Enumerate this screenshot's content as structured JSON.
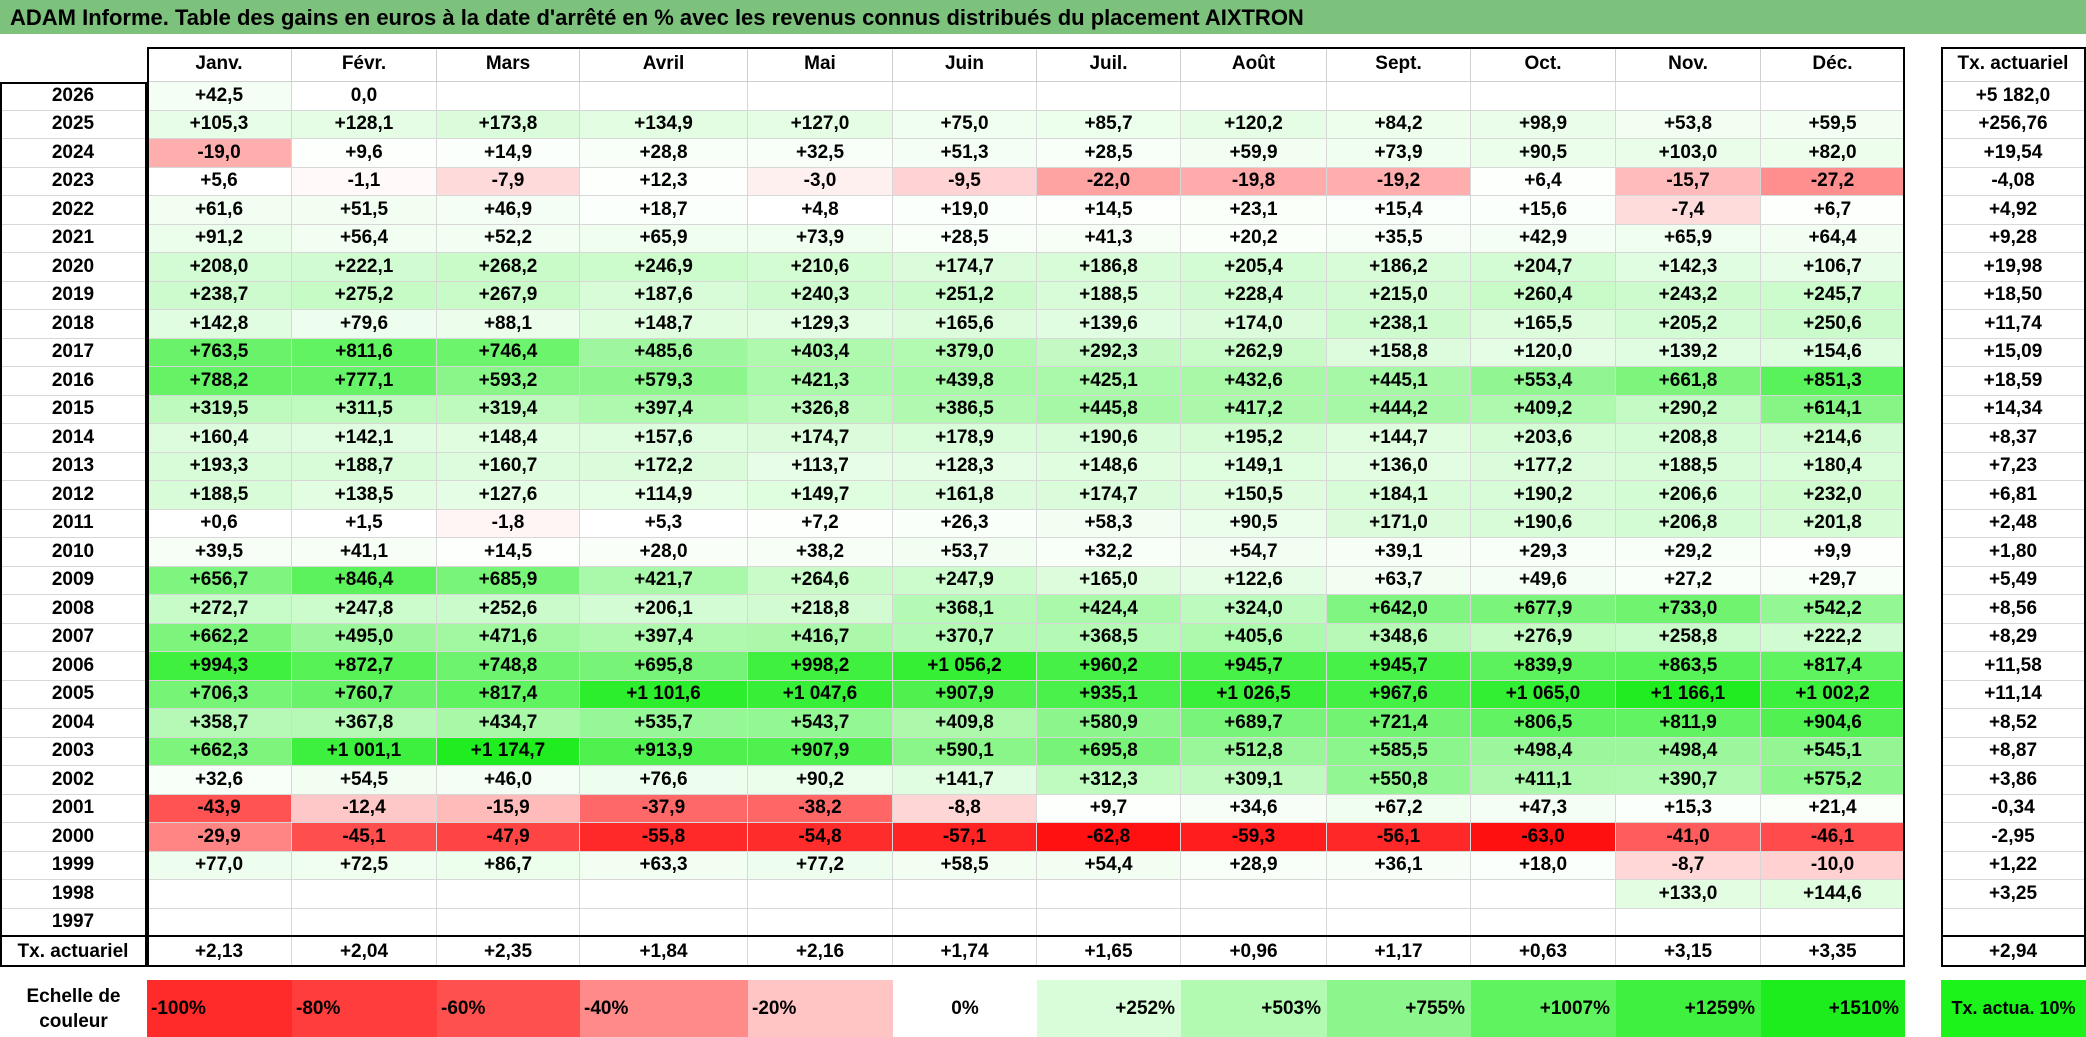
{
  "title": "ADAM Informe. Table des gains en euros à la date d'arrêté en % avec les revenus connus distribués du placement AIXTRON",
  "months": [
    "Janv.",
    "Févr.",
    "Mars",
    "Avril",
    "Mai",
    "Juin",
    "Juil.",
    "Août",
    "Sept.",
    "Oct.",
    "Nov.",
    "Déc."
  ],
  "tx_header": "Tx. actuariel",
  "rows": [
    {
      "year": "2026",
      "values": [
        "+42,5",
        "0,0",
        "",
        "",
        "",
        "",
        "",
        "",
        "",
        "",
        "",
        ""
      ],
      "tx": "+5 182,0"
    },
    {
      "year": "2025",
      "values": [
        "+105,3",
        "+128,1",
        "+173,8",
        "+134,9",
        "+127,0",
        "+75,0",
        "+85,7",
        "+120,2",
        "+84,2",
        "+98,9",
        "+53,8",
        "+59,5"
      ],
      "tx": "+256,76"
    },
    {
      "year": "2024",
      "values": [
        "-19,0",
        "+9,6",
        "+14,9",
        "+28,8",
        "+32,5",
        "+51,3",
        "+28,5",
        "+59,9",
        "+73,9",
        "+90,5",
        "+103,0",
        "+82,0"
      ],
      "tx": "+19,54"
    },
    {
      "year": "2023",
      "values": [
        "+5,6",
        "-1,1",
        "-7,9",
        "+12,3",
        "-3,0",
        "-9,5",
        "-22,0",
        "-19,8",
        "-19,2",
        "+6,4",
        "-15,7",
        "-27,2"
      ],
      "tx": "-4,08"
    },
    {
      "year": "2022",
      "values": [
        "+61,6",
        "+51,5",
        "+46,9",
        "+18,7",
        "+4,8",
        "+19,0",
        "+14,5",
        "+23,1",
        "+15,4",
        "+15,6",
        "-7,4",
        "+6,7"
      ],
      "tx": "+4,92"
    },
    {
      "year": "2021",
      "values": [
        "+91,2",
        "+56,4",
        "+52,2",
        "+65,9",
        "+73,9",
        "+28,5",
        "+41,3",
        "+20,2",
        "+35,5",
        "+42,9",
        "+65,9",
        "+64,4"
      ],
      "tx": "+9,28"
    },
    {
      "year": "2020",
      "values": [
        "+208,0",
        "+222,1",
        "+268,2",
        "+246,9",
        "+210,6",
        "+174,7",
        "+186,8",
        "+205,4",
        "+186,2",
        "+204,7",
        "+142,3",
        "+106,7"
      ],
      "tx": "+19,98"
    },
    {
      "year": "2019",
      "values": [
        "+238,7",
        "+275,2",
        "+267,9",
        "+187,6",
        "+240,3",
        "+251,2",
        "+188,5",
        "+228,4",
        "+215,0",
        "+260,4",
        "+243,2",
        "+245,7"
      ],
      "tx": "+18,50"
    },
    {
      "year": "2018",
      "values": [
        "+142,8",
        "+79,6",
        "+88,1",
        "+148,7",
        "+129,3",
        "+165,6",
        "+139,6",
        "+174,0",
        "+238,1",
        "+165,5",
        "+205,2",
        "+250,6"
      ],
      "tx": "+11,74"
    },
    {
      "year": "2017",
      "values": [
        "+763,5",
        "+811,6",
        "+746,4",
        "+485,6",
        "+403,4",
        "+379,0",
        "+292,3",
        "+262,9",
        "+158,8",
        "+120,0",
        "+139,2",
        "+154,6"
      ],
      "tx": "+15,09"
    },
    {
      "year": "2016",
      "values": [
        "+788,2",
        "+777,1",
        "+593,2",
        "+579,3",
        "+421,3",
        "+439,8",
        "+425,1",
        "+432,6",
        "+445,1",
        "+553,4",
        "+661,8",
        "+851,3"
      ],
      "tx": "+18,59"
    },
    {
      "year": "2015",
      "values": [
        "+319,5",
        "+311,5",
        "+319,4",
        "+397,4",
        "+326,8",
        "+386,5",
        "+445,8",
        "+417,2",
        "+444,2",
        "+409,2",
        "+290,2",
        "+614,1"
      ],
      "tx": "+14,34"
    },
    {
      "year": "2014",
      "values": [
        "+160,4",
        "+142,1",
        "+148,4",
        "+157,6",
        "+174,7",
        "+178,9",
        "+190,6",
        "+195,2",
        "+144,7",
        "+203,6",
        "+208,8",
        "+214,6"
      ],
      "tx": "+8,37"
    },
    {
      "year": "2013",
      "values": [
        "+193,3",
        "+188,7",
        "+160,7",
        "+172,2",
        "+113,7",
        "+128,3",
        "+148,6",
        "+149,1",
        "+136,0",
        "+177,2",
        "+188,5",
        "+180,4"
      ],
      "tx": "+7,23"
    },
    {
      "year": "2012",
      "values": [
        "+188,5",
        "+138,5",
        "+127,6",
        "+114,9",
        "+149,7",
        "+161,8",
        "+174,7",
        "+150,5",
        "+184,1",
        "+190,2",
        "+206,6",
        "+232,0"
      ],
      "tx": "+6,81"
    },
    {
      "year": "2011",
      "values": [
        "+0,6",
        "+1,5",
        "-1,8",
        "+5,3",
        "+7,2",
        "+26,3",
        "+58,3",
        "+90,5",
        "+171,0",
        "+190,6",
        "+206,8",
        "+201,8"
      ],
      "tx": "+2,48"
    },
    {
      "year": "2010",
      "values": [
        "+39,5",
        "+41,1",
        "+14,5",
        "+28,0",
        "+38,2",
        "+53,7",
        "+32,2",
        "+54,7",
        "+39,1",
        "+29,3",
        "+29,2",
        "+9,9"
      ],
      "tx": "+1,80"
    },
    {
      "year": "2009",
      "values": [
        "+656,7",
        "+846,4",
        "+685,9",
        "+421,7",
        "+264,6",
        "+247,9",
        "+165,0",
        "+122,6",
        "+63,7",
        "+49,6",
        "+27,2",
        "+29,7"
      ],
      "tx": "+5,49"
    },
    {
      "year": "2008",
      "values": [
        "+272,7",
        "+247,8",
        "+252,6",
        "+206,1",
        "+218,8",
        "+368,1",
        "+424,4",
        "+324,0",
        "+642,0",
        "+677,9",
        "+733,0",
        "+542,2"
      ],
      "tx": "+8,56"
    },
    {
      "year": "2007",
      "values": [
        "+662,2",
        "+495,0",
        "+471,6",
        "+397,4",
        "+416,7",
        "+370,7",
        "+368,5",
        "+405,6",
        "+348,6",
        "+276,9",
        "+258,8",
        "+222,2"
      ],
      "tx": "+8,29"
    },
    {
      "year": "2006",
      "values": [
        "+994,3",
        "+872,7",
        "+748,8",
        "+695,8",
        "+998,2",
        "+1 056,2",
        "+960,2",
        "+945,7",
        "+945,7",
        "+839,9",
        "+863,5",
        "+817,4"
      ],
      "tx": "+11,58"
    },
    {
      "year": "2005",
      "values": [
        "+706,3",
        "+760,7",
        "+817,4",
        "+1 101,6",
        "+1 047,6",
        "+907,9",
        "+935,1",
        "+1 026,5",
        "+967,6",
        "+1 065,0",
        "+1 166,1",
        "+1 002,2"
      ],
      "tx": "+11,14"
    },
    {
      "year": "2004",
      "values": [
        "+358,7",
        "+367,8",
        "+434,7",
        "+535,7",
        "+543,7",
        "+409,8",
        "+580,9",
        "+689,7",
        "+721,4",
        "+806,5",
        "+811,9",
        "+904,6"
      ],
      "tx": "+8,52"
    },
    {
      "year": "2003",
      "values": [
        "+662,3",
        "+1 001,1",
        "+1 174,7",
        "+913,9",
        "+907,9",
        "+590,1",
        "+695,8",
        "+512,8",
        "+585,5",
        "+498,4",
        "+498,4",
        "+545,1"
      ],
      "tx": "+8,87"
    },
    {
      "year": "2002",
      "values": [
        "+32,6",
        "+54,5",
        "+46,0",
        "+76,6",
        "+90,2",
        "+141,7",
        "+312,3",
        "+309,1",
        "+550,8",
        "+411,1",
        "+390,7",
        "+575,2"
      ],
      "tx": "+3,86"
    },
    {
      "year": "2001",
      "values": [
        "-43,9",
        "-12,4",
        "-15,9",
        "-37,9",
        "-38,2",
        "-8,8",
        "+9,7",
        "+34,6",
        "+67,2",
        "+47,3",
        "+15,3",
        "+21,4"
      ],
      "tx": "-0,34"
    },
    {
      "year": "2000",
      "values": [
        "-29,9",
        "-45,1",
        "-47,9",
        "-55,8",
        "-54,8",
        "-57,1",
        "-62,8",
        "-59,3",
        "-56,1",
        "-63,0",
        "-41,0",
        "-46,1"
      ],
      "tx": "-2,95"
    },
    {
      "year": "1999",
      "values": [
        "+77,0",
        "+72,5",
        "+86,7",
        "+63,3",
        "+77,2",
        "+58,5",
        "+54,4",
        "+28,9",
        "+36,1",
        "+18,0",
        "-8,7",
        "-10,0"
      ],
      "tx": "+1,22"
    },
    {
      "year": "1998",
      "values": [
        "",
        "",
        "",
        "",
        "",
        "",
        "",
        "",
        "",
        "",
        "+133,0",
        "+144,6"
      ],
      "tx": "+3,25"
    },
    {
      "year": "1997",
      "values": [
        "",
        "",
        "",
        "",
        "",
        "",
        "",
        "",
        "",
        "",
        "",
        ""
      ],
      "tx": ""
    }
  ],
  "footer": {
    "label": "Tx. actuariel",
    "values": [
      "+2,13",
      "+2,04",
      "+2,35",
      "+1,84",
      "+2,16",
      "+1,74",
      "+1,65",
      "+0,96",
      "+1,17",
      "+0,63",
      "+3,15",
      "+3,35"
    ],
    "tx": "+2,94"
  },
  "legend": {
    "label": "Echelle de couleur",
    "swatches": [
      {
        "text": "-100%",
        "color": "#ff2a2a"
      },
      {
        "text": "-80%",
        "color": "#ff3d3d"
      },
      {
        "text": "-60%",
        "color": "#ff5050"
      },
      {
        "text": "-40%",
        "color": "#ff8a8a"
      },
      {
        "text": "-20%",
        "color": "#ffc4c4"
      },
      {
        "text": "0%",
        "color": "#ffffff"
      },
      {
        "text": "+252%",
        "color": "#d9fcd9"
      },
      {
        "text": "+503%",
        "color": "#b2f9b2"
      },
      {
        "text": "+755%",
        "color": "#8cf68c"
      },
      {
        "text": "+1007%",
        "color": "#60f360"
      },
      {
        "text": "+1259%",
        "color": "#3ff03f"
      },
      {
        "text": "+1510%",
        "color": "#1ded1d"
      }
    ],
    "tx_label": "Tx. actua. 10%",
    "tx_color": "#1bf31b"
  },
  "colors": {
    "title_bg": "#7cc17c"
  }
}
